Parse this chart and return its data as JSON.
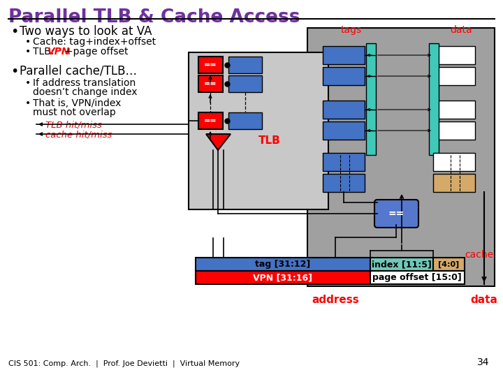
{
  "title": "Parallel TLB & Cache Access",
  "title_color": "#7030A0",
  "bg_color": "#FFFFFF",
  "footer": "CIS 501: Comp. Arch.  |  Prof. Joe Devietti  |  Virtual Memory",
  "slide_number": "34",
  "bullet1": "Two ways to look at VA",
  "bullet1a": "Cache: tag+index+offset",
  "bullet1b_prefix": "TLB: ",
  "bullet1b_vpn": "VPN",
  "bullet1b_suffix": "+page offset",
  "bullet2": "Parallel cache/TLB…",
  "bullet2a1": "If address translation",
  "bullet2a2": "doesn’t change index",
  "bullet2b1": "That is, VPN/index",
  "bullet2b2": "must not overlap",
  "tlb_hit": "TLB hit/miss",
  "cache_hit": "cache hit/miss",
  "tags_label": "tags",
  "data_label": "data",
  "cache_label": "cache",
  "tlb_label": "TLB",
  "tag_bar_label": "tag [31:12]",
  "index_bar_label": "index [11:5]",
  "offset_bar_label": "[4:0]",
  "vpn_bar_label": "VPN [31:16]",
  "page_offset_label": "page offset [15:0]",
  "address_label": "address",
  "data_out_label": "data",
  "blue_color": "#4472C4",
  "red_color": "#FF0000",
  "mid_gray": "#A0A0A0",
  "light_gray": "#C8C8C8",
  "teal_color": "#40C8B8",
  "tan_color": "#D4A96A",
  "comparator_blue": "#5577CC"
}
